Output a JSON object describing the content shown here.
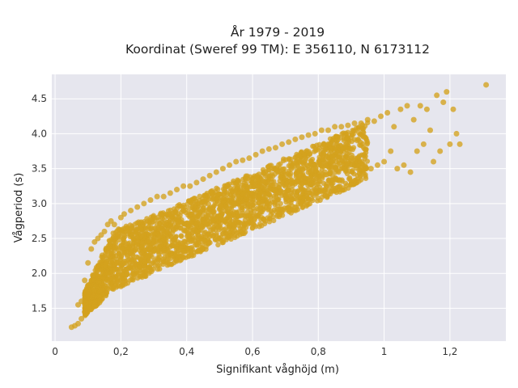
{
  "chart_data": {
    "type": "scatter",
    "title": "År 1979 - 2019",
    "subtitle": "Koordinat (Sweref 99 TM): E 356110, N 6173112",
    "xlabel": "Signifikant våghöjd (m)",
    "ylabel": "Vågperiod (s)",
    "xlim": [
      -0.01,
      1.37
    ],
    "ylim": [
      1.03,
      4.85
    ],
    "x_ticks": [
      0,
      0.2,
      0.4,
      0.6,
      0.8,
      1,
      1.2
    ],
    "x_tick_labels": [
      "0",
      "0,2",
      "0,4",
      "0,6",
      "0,8",
      "1",
      "1,2"
    ],
    "y_ticks": [
      1.5,
      2.0,
      2.5,
      3.0,
      3.5,
      4.0,
      4.5
    ],
    "y_tick_labels": [
      "1.5",
      "2.0",
      "2.5",
      "3.0",
      "3.5",
      "4.0",
      "4.5"
    ],
    "grid": true,
    "legend": "none",
    "colors": {
      "point": "#D4A21E",
      "plot_bg": "#E6E6EE",
      "grid": "#FFFFFF"
    },
    "series": [
      {
        "x": [
          0.05,
          0.06,
          0.07,
          0.07,
          0.08,
          0.08,
          0.09,
          0.09,
          0.1,
          0.1,
          0.11,
          0.11,
          0.12,
          0.12,
          0.13,
          0.13,
          0.14,
          0.14,
          0.15,
          0.15,
          0.16,
          0.16,
          0.17,
          0.17,
          0.18,
          0.18,
          0.19,
          0.2,
          0.2,
          0.21,
          0.22,
          0.23,
          0.24,
          0.25,
          0.26,
          0.27,
          0.28,
          0.29,
          0.3,
          0.31,
          0.32,
          0.33,
          0.34,
          0.35,
          0.36,
          0.37,
          0.38,
          0.39,
          0.4,
          0.41,
          0.42,
          0.43,
          0.44,
          0.45,
          0.46,
          0.47,
          0.48,
          0.49,
          0.5,
          0.51,
          0.52,
          0.53,
          0.54,
          0.55,
          0.56,
          0.57,
          0.58,
          0.59,
          0.6,
          0.61,
          0.62,
          0.63,
          0.64,
          0.65,
          0.66,
          0.67,
          0.68,
          0.69,
          0.7,
          0.71,
          0.72,
          0.73,
          0.74,
          0.75,
          0.76,
          0.77,
          0.78,
          0.79,
          0.8,
          0.81,
          0.82,
          0.83,
          0.84,
          0.85,
          0.86,
          0.87,
          0.88,
          0.89,
          0.9,
          0.91,
          0.92,
          0.93,
          0.94,
          0.95,
          0.96,
          0.97,
          0.98,
          0.99,
          1.0,
          1.01,
          1.02,
          1.03,
          1.04,
          1.05,
          1.06,
          1.07,
          1.08,
          1.09,
          1.1,
          1.11,
          1.12,
          1.13,
          1.14,
          1.15,
          1.16,
          1.17,
          1.18,
          1.19,
          1.2,
          1.21,
          1.22,
          1.23,
          1.31
        ],
        "y": [
          1.23,
          1.25,
          1.55,
          1.28,
          1.6,
          1.35,
          1.9,
          1.45,
          2.15,
          1.55,
          2.35,
          1.65,
          2.45,
          1.75,
          2.5,
          1.82,
          2.55,
          1.88,
          2.6,
          1.95,
          2.7,
          2.0,
          2.75,
          2.02,
          2.7,
          2.1,
          2.15,
          2.8,
          2.2,
          2.85,
          2.25,
          2.9,
          2.32,
          2.95,
          2.4,
          3.0,
          2.45,
          3.05,
          2.5,
          3.1,
          2.55,
          3.1,
          2.6,
          3.15,
          2.62,
          3.2,
          2.65,
          3.25,
          2.7,
          3.25,
          2.75,
          3.3,
          2.78,
          3.35,
          2.82,
          3.4,
          2.88,
          3.45,
          2.92,
          3.5,
          2.95,
          3.55,
          3.0,
          3.6,
          3.02,
          3.62,
          3.05,
          3.65,
          3.1,
          3.7,
          3.12,
          3.75,
          3.15,
          3.78,
          3.2,
          3.8,
          3.22,
          3.85,
          3.25,
          3.88,
          3.3,
          3.92,
          3.32,
          3.95,
          3.35,
          3.98,
          3.4,
          4.0,
          3.42,
          4.05,
          3.45,
          4.05,
          3.5,
          4.1,
          3.55,
          4.1,
          3.6,
          4.12,
          3.62,
          4.15,
          3.65,
          4.15,
          3.7,
          4.2,
          3.5,
          4.18,
          3.55,
          4.25,
          3.6,
          4.3,
          3.75,
          4.1,
          3.5,
          4.35,
          3.55,
          4.4,
          3.45,
          4.2,
          3.75,
          4.4,
          3.85,
          4.35,
          4.05,
          3.6,
          4.55,
          3.75,
          4.45,
          4.6,
          3.85,
          4.35,
          4.0,
          3.85,
          4.7
        ]
      }
    ]
  }
}
